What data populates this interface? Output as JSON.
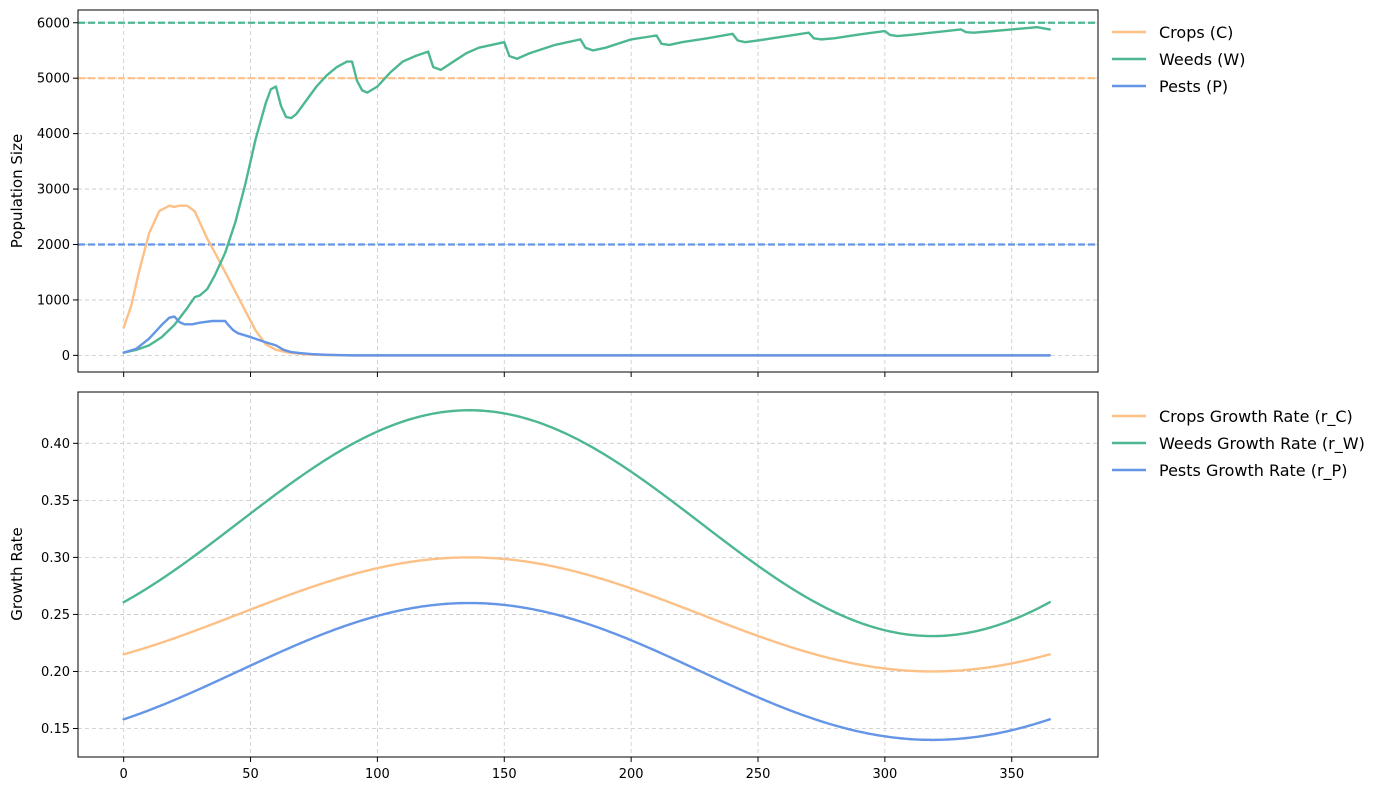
{
  "chart_data": [
    {
      "type": "line",
      "title": "",
      "xlabel": "",
      "ylabel": "Population Size",
      "xlim": [
        -18,
        384
      ],
      "ylim": [
        -300,
        6230
      ],
      "grid": true,
      "legend_placement": "outside-top-right",
      "xticks": [
        0,
        50,
        100,
        150,
        200,
        250,
        300,
        350
      ],
      "yticks": [
        0,
        1000,
        2000,
        3000,
        4000,
        5000,
        6000
      ],
      "ytick_labels": [
        "0",
        "1000",
        "2000",
        "3000",
        "4000",
        "5000",
        "6000"
      ],
      "series": [
        {
          "name": "Crops (C)",
          "color": "#fdc086",
          "x": [
            0,
            3,
            6,
            10,
            14,
            18,
            20,
            22,
            25,
            28,
            30,
            33,
            36,
            40,
            44,
            48,
            52,
            56,
            60,
            65,
            70,
            75,
            80,
            90,
            100,
            150,
            200,
            250,
            300,
            365
          ],
          "y": [
            500,
            900,
            1500,
            2200,
            2600,
            2700,
            2680,
            2700,
            2700,
            2600,
            2400,
            2100,
            1850,
            1500,
            1150,
            800,
            450,
            200,
            100,
            50,
            25,
            10,
            5,
            0,
            0,
            0,
            0,
            0,
            0,
            0
          ]
        },
        {
          "name": "Weeds (W)",
          "color": "#4db890",
          "x": [
            0,
            5,
            10,
            15,
            20,
            25,
            28,
            30,
            33,
            36,
            40,
            44,
            48,
            52,
            56,
            58,
            60,
            62,
            64,
            66,
            68,
            72,
            76,
            80,
            84,
            88,
            90,
            92,
            94,
            96,
            100,
            105,
            110,
            115,
            120,
            122,
            125,
            130,
            135,
            140,
            145,
            150,
            152,
            155,
            160,
            170,
            180,
            182,
            185,
            190,
            200,
            210,
            212,
            215,
            220,
            230,
            240,
            242,
            245,
            250,
            260,
            270,
            272,
            275,
            280,
            290,
            300,
            302,
            305,
            310,
            320,
            330,
            332,
            335,
            340,
            350,
            360,
            365
          ],
          "y": [
            50,
            100,
            180,
            330,
            550,
            850,
            1050,
            1080,
            1200,
            1450,
            1850,
            2400,
            3100,
            3900,
            4550,
            4800,
            4850,
            4500,
            4300,
            4280,
            4350,
            4600,
            4850,
            5050,
            5200,
            5300,
            5300,
            4950,
            4780,
            4740,
            4850,
            5100,
            5300,
            5400,
            5480,
            5200,
            5150,
            5300,
            5450,
            5550,
            5600,
            5650,
            5400,
            5350,
            5450,
            5600,
            5700,
            5550,
            5500,
            5550,
            5700,
            5770,
            5620,
            5600,
            5650,
            5720,
            5800,
            5680,
            5650,
            5680,
            5750,
            5820,
            5720,
            5700,
            5720,
            5790,
            5850,
            5780,
            5760,
            5780,
            5830,
            5880,
            5830,
            5820,
            5840,
            5880,
            5920,
            5880
          ]
        },
        {
          "name": "Pests (P)",
          "color": "#6495e6",
          "x": [
            0,
            5,
            10,
            15,
            18,
            20,
            22,
            24,
            27,
            30,
            35,
            40,
            41,
            43,
            45,
            50,
            55,
            60,
            63,
            66,
            70,
            75,
            80,
            90,
            100,
            150,
            200,
            250,
            300,
            365
          ],
          "y": [
            50,
            120,
            300,
            550,
            680,
            700,
            600,
            560,
            560,
            590,
            620,
            620,
            560,
            460,
            400,
            330,
            250,
            180,
            100,
            60,
            40,
            20,
            10,
            0,
            0,
            0,
            0,
            0,
            0,
            0
          ]
        }
      ],
      "reference_lines": [
        {
          "y": 6000,
          "color": "#4db890",
          "style": "dashed"
        },
        {
          "y": 5000,
          "color": "#fdc086",
          "style": "dashed"
        },
        {
          "y": 2000,
          "color": "#6495e6",
          "style": "dashed"
        }
      ]
    },
    {
      "type": "line",
      "title": "",
      "xlabel": "",
      "ylabel": "Growth Rate",
      "xlim": [
        -18,
        384
      ],
      "ylim": [
        0.125,
        0.445
      ],
      "grid": true,
      "legend_placement": "outside-top-right",
      "xticks": [
        0,
        50,
        100,
        150,
        200,
        250,
        300,
        350
      ],
      "xtick_labels": [
        "0",
        "50",
        "100",
        "150",
        "200",
        "250",
        "300",
        "350"
      ],
      "yticks": [
        0.15,
        0.2,
        0.25,
        0.3,
        0.35,
        0.4
      ],
      "ytick_labels": [
        "0.15",
        "0.20",
        "0.25",
        "0.30",
        "0.35",
        "0.40"
      ],
      "series": [
        {
          "name": "Crops Growth Rate (r_C)",
          "color": "#fdc086",
          "base": 0.25,
          "amplitude": 0.05,
          "period": 365,
          "peak_x": 136.25,
          "x_range": [
            0,
            365
          ]
        },
        {
          "name": "Weeds Growth Rate (r_W)",
          "color": "#4db890",
          "base": 0.33,
          "amplitude": 0.099,
          "period": 365,
          "peak_x": 136.25,
          "x_range": [
            0,
            365
          ]
        },
        {
          "name": "Pests Growth Rate (r_P)",
          "color": "#6495e6",
          "base": 0.2,
          "amplitude": 0.06,
          "period": 365,
          "peak_x": 136.25,
          "x_range": [
            0,
            365
          ]
        }
      ]
    }
  ]
}
